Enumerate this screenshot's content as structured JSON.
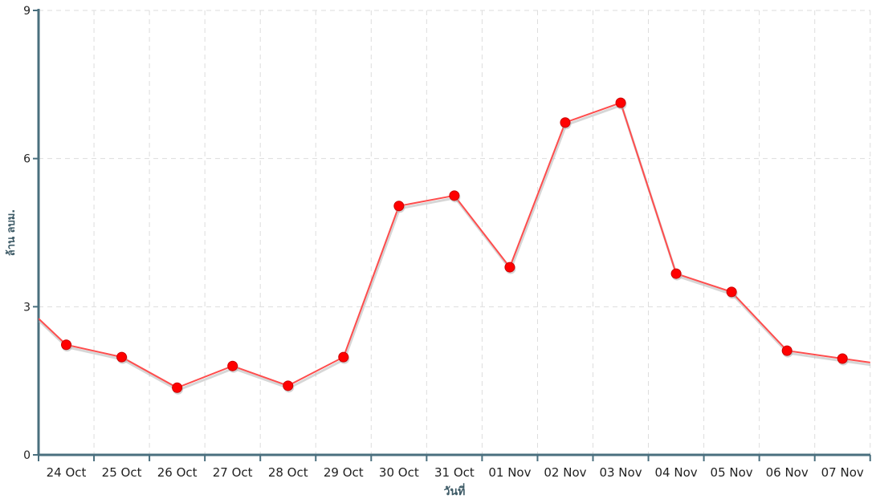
{
  "chart_data": {
    "type": "line",
    "title": "",
    "xlabel": "วันที่",
    "ylabel": "ล้าน ลบม.",
    "ylim": [
      0,
      9
    ],
    "yticks": [
      0,
      3,
      6,
      9
    ],
    "grid": true,
    "categories": [
      "24 Oct",
      "25 Oct",
      "26 Oct",
      "27 Oct",
      "28 Oct",
      "29 Oct",
      "30 Oct",
      "31 Oct",
      "01 Nov",
      "02 Nov",
      "03 Nov",
      "04 Nov",
      "05 Nov",
      "06 Nov",
      "07 Nov"
    ],
    "values": [
      2.23,
      1.98,
      1.36,
      1.8,
      1.4,
      1.98,
      5.04,
      5.25,
      3.8,
      6.73,
      7.13,
      3.67,
      3.3,
      2.11,
      1.95
    ],
    "line_enters_from_left_value": 2.76,
    "line_exits_right_value": 1.87,
    "colors": {
      "line": "#ff4d4d",
      "marker": "#ff0000",
      "marker_stroke": "#cc0000",
      "axis": "#4a6f7e",
      "grid": "#dddddd"
    }
  }
}
